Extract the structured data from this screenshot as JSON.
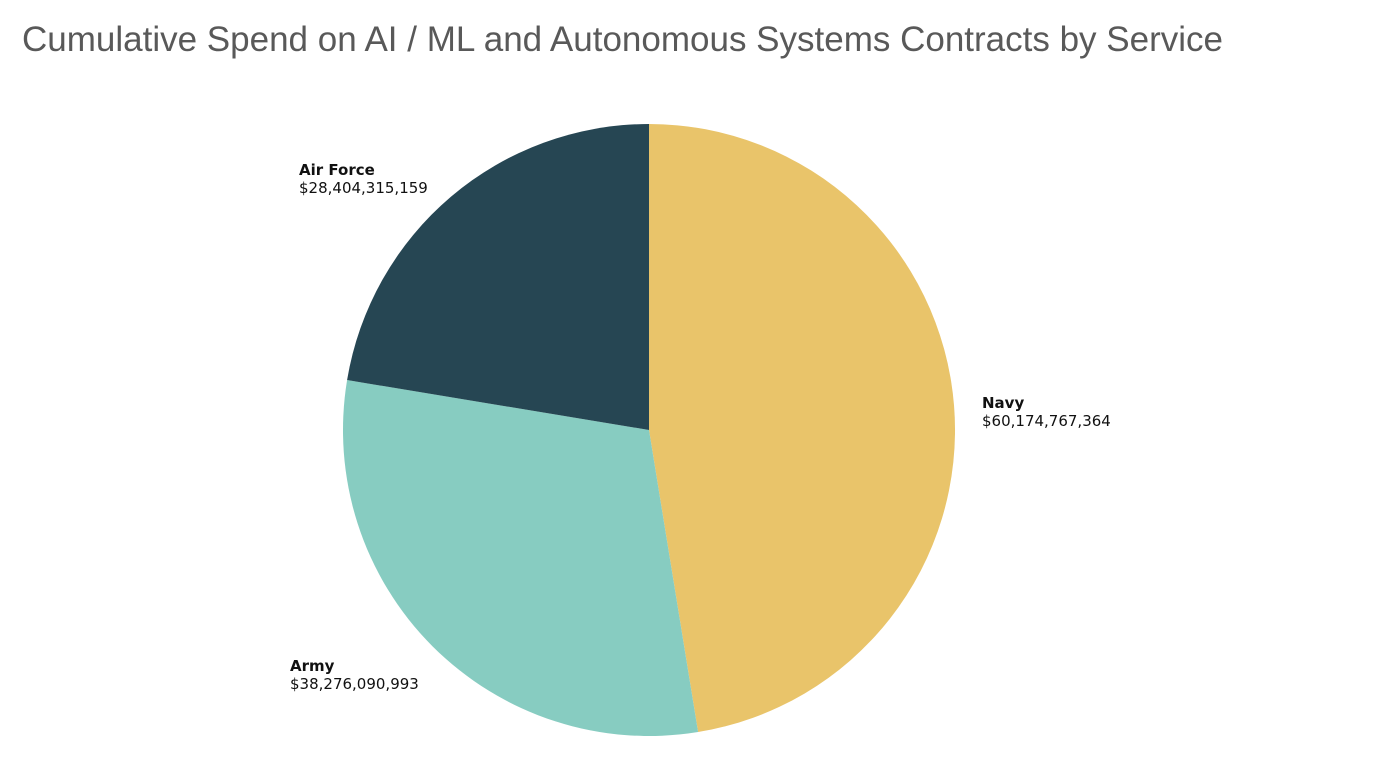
{
  "chart_data": {
    "type": "pie",
    "title": "Cumulative Spend on AI / ML and Autonomous Systems Contracts by Service",
    "slices": [
      {
        "label": "Navy",
        "value": 60174767364,
        "display_value": "$60,174,767,364",
        "color": "#E9C46A"
      },
      {
        "label": "Army",
        "value": 38276090993,
        "display_value": "$38,276,090,993",
        "color": "#87CCC1"
      },
      {
        "label": "Air Force",
        "value": 28404315159,
        "display_value": "$28,404,315,159",
        "color": "#264653"
      }
    ],
    "start": "12 o'clock",
    "direction": "clockwise",
    "legend": "none",
    "label_placement": "outside"
  }
}
